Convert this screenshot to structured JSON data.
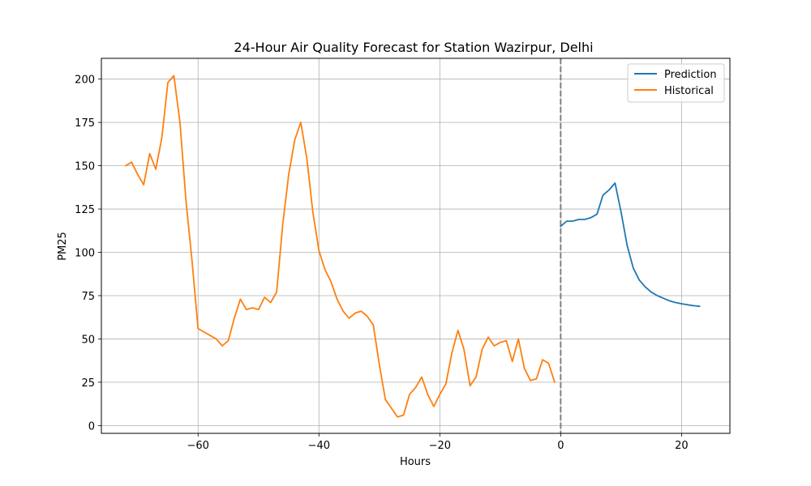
{
  "chart_data": {
    "type": "line",
    "title": "24-Hour Air Quality Forecast for Station Wazirpur, Delhi",
    "xlabel": "Hours",
    "ylabel": "PM25",
    "xlim": [
      -76,
      28
    ],
    "ylim": [
      -4.5,
      212
    ],
    "xticks": [
      -60,
      -40,
      -20,
      0,
      20
    ],
    "xtick_labels": [
      "−60",
      "−40",
      "−20",
      "0",
      "20"
    ],
    "yticks": [
      0,
      25,
      50,
      75,
      100,
      125,
      150,
      175,
      200
    ],
    "ytick_labels": [
      "0",
      "25",
      "50",
      "75",
      "100",
      "125",
      "150",
      "175",
      "200"
    ],
    "grid": true,
    "legend_position": "top-right",
    "vline": {
      "x": 0,
      "style": "dashed",
      "color": "#808080"
    },
    "series": [
      {
        "name": "Prediction",
        "color": "#1f77b4",
        "x": [
          0,
          1,
          2,
          3,
          4,
          5,
          6,
          7,
          8,
          9,
          10,
          11,
          12,
          13,
          14,
          15,
          16,
          17,
          18,
          19,
          20,
          21,
          22,
          23
        ],
        "y": [
          115,
          118,
          118,
          119,
          119,
          120,
          122,
          133,
          136,
          140,
          123,
          104,
          91,
          84,
          80,
          77,
          75,
          73.5,
          72,
          71,
          70.3,
          69.7,
          69.2,
          68.8
        ]
      },
      {
        "name": "Historical",
        "color": "#ff7f0e",
        "x": [
          -72,
          -71,
          -70,
          -69,
          -68,
          -67,
          -66,
          -65,
          -64,
          -63,
          -62,
          -61,
          -60,
          -59,
          -58,
          -57,
          -56,
          -55,
          -54,
          -53,
          -52,
          -51,
          -50,
          -49,
          -48,
          -47,
          -46,
          -45,
          -44,
          -43,
          -42,
          -41,
          -40,
          -39,
          -38,
          -37,
          -36,
          -35,
          -34,
          -33,
          -32,
          -31,
          -30,
          -29,
          -28,
          -27,
          -26,
          -25,
          -24,
          -23,
          -22,
          -21,
          -20,
          -19,
          -18,
          -17,
          -16,
          -15,
          -14,
          -13,
          -12,
          -11,
          -10,
          -9,
          -8,
          -7,
          -6,
          -5,
          -4,
          -3,
          -2,
          -1
        ],
        "y": [
          150,
          152,
          145,
          139,
          157,
          148,
          166,
          198,
          202,
          175,
          130,
          95,
          56,
          54,
          52,
          50,
          46,
          49,
          62,
          73,
          67,
          68,
          67,
          74,
          71,
          77,
          116,
          145,
          165,
          175,
          154,
          123,
          101,
          90,
          83,
          73,
          66,
          62,
          65,
          66,
          63,
          58,
          35,
          15,
          10,
          5,
          6,
          18,
          22,
          28,
          18,
          11,
          18,
          24,
          42,
          55,
          44,
          23,
          28,
          44,
          51,
          46,
          48,
          49,
          37,
          50,
          33,
          26,
          27,
          38,
          36,
          25
        ]
      }
    ]
  }
}
